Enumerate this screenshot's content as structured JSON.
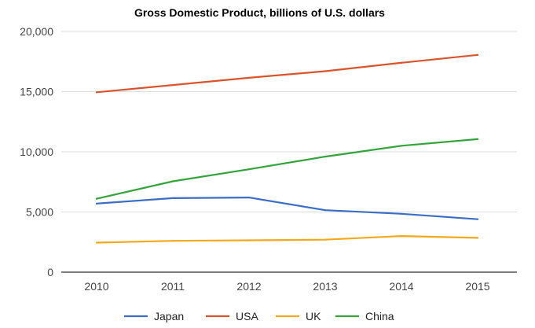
{
  "chart_data": {
    "type": "line",
    "title": "Gross Domestic Product, billions of U.S. dollars",
    "xlabel": "",
    "ylabel": "",
    "x": [
      "2010",
      "2011",
      "2012",
      "2013",
      "2014",
      "2015"
    ],
    "ylim": [
      0,
      20000
    ],
    "yticks": [
      "0",
      "5,000",
      "10,000",
      "15,000",
      "20,000"
    ],
    "grid": true,
    "legend_position": "bottom",
    "series": [
      {
        "name": "Japan",
        "color": "#3c6dc5",
        "values": [
          5700,
          6150,
          6200,
          5150,
          4850,
          4400
        ]
      },
      {
        "name": "USA",
        "color": "#d9532c",
        "values": [
          14950,
          15550,
          16150,
          16700,
          17400,
          18050
        ]
      },
      {
        "name": "UK",
        "color": "#f4a81c",
        "values": [
          2450,
          2600,
          2650,
          2700,
          3000,
          2850
        ]
      },
      {
        "name": "China",
        "color": "#34a33c",
        "values": [
          6100,
          7550,
          8550,
          9600,
          10500,
          11050
        ]
      }
    ]
  }
}
